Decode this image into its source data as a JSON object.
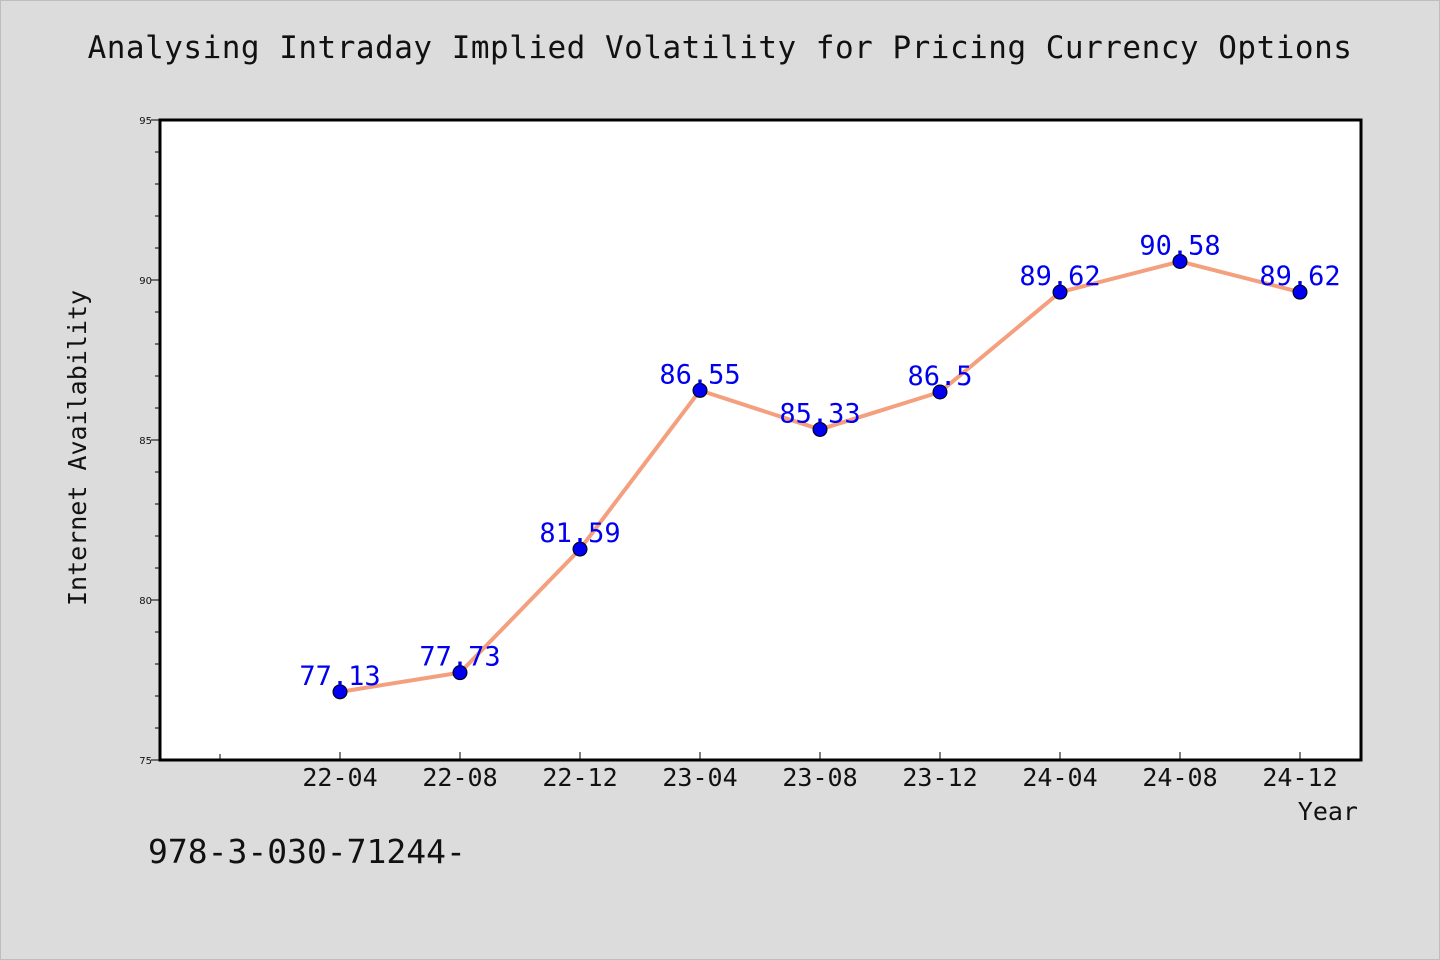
{
  "chart_data": {
    "type": "line",
    "title": "Analysing Intraday Implied Volatility for Pricing Currency Options",
    "xlabel": "Year",
    "ylabel": "Internet Availability",
    "categories": [
      "22-04",
      "22-08",
      "22-12",
      "23-04",
      "23-08",
      "23-12",
      "24-04",
      "24-08",
      "24-12"
    ],
    "series": [
      {
        "values": [
          77.13,
          77.73,
          81.59,
          86.55,
          85.33,
          86.5,
          89.62,
          90.58,
          89.62
        ],
        "labels": [
          "77.13",
          "77.73",
          "81.59",
          "86.55",
          "85.33",
          "86.5",
          "89.62",
          "90.58",
          "89.62"
        ]
      }
    ],
    "ylim": [
      75,
      95
    ],
    "yticks": [
      "75",
      "80",
      "85",
      "90",
      "95"
    ],
    "grid": false,
    "legend": "none",
    "colors": {
      "line": "#f4a07e",
      "marker": "#0000ee",
      "label": "#0000ee"
    }
  },
  "footer": {
    "text": "978-3-030-71244-"
  }
}
